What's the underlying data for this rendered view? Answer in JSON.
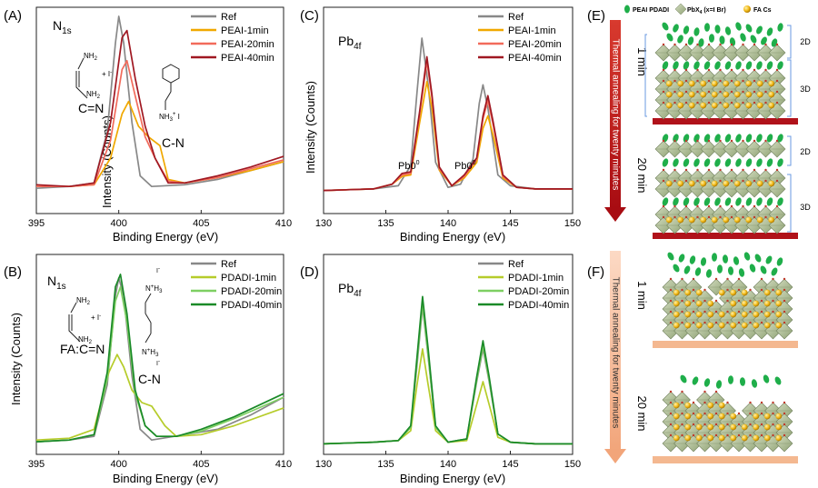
{
  "colors": {
    "ref": "#888888",
    "peai_1": "#f0a800",
    "peai_20": "#f26b5b",
    "peai_40": "#a01822",
    "pdadi_1": "#b6cc2a",
    "pdadi_20": "#7ecf62",
    "pdadi_40": "#1a8a28",
    "pea_pdadi": "#1fae4a",
    "pbx": "#a7b98a",
    "fa_cs": "#f2bb1a",
    "red_bar": "#b0121a",
    "light_bar": "#f4b890"
  },
  "chart_data": [
    {
      "panel": "(A)",
      "type": "line",
      "title": "N1s",
      "title_main": "N",
      "title_sub": "1s",
      "xlabel": "Binding Energy (eV)",
      "ylabel": "Intensity (Counts)",
      "xlim": [
        395,
        410
      ],
      "xticks": [
        395,
        400,
        405,
        410
      ],
      "legend": [
        "Ref",
        "PEAI-1min",
        "PEAI-20min",
        "PEAI-40min"
      ],
      "legend_position": "top-right",
      "annotations": [
        "C=N",
        "C-N"
      ],
      "series": [
        {
          "name": "Ref",
          "x": [
            395,
            397,
            398.5,
            399.3,
            399.8,
            400.0,
            400.3,
            400.8,
            401.3,
            402,
            404,
            406,
            408,
            410
          ],
          "y": [
            0.03,
            0.04,
            0.06,
            0.35,
            0.85,
            1.0,
            0.85,
            0.4,
            0.1,
            0.04,
            0.05,
            0.08,
            0.13,
            0.18
          ]
        },
        {
          "name": "PEAI-1min",
          "x": [
            395,
            397,
            398.5,
            399.5,
            400.2,
            400.6,
            401.2,
            401.8,
            402.5,
            403,
            404,
            406,
            408,
            410
          ],
          "y": [
            0.04,
            0.04,
            0.05,
            0.2,
            0.45,
            0.52,
            0.38,
            0.32,
            0.27,
            0.08,
            0.06,
            0.09,
            0.13,
            0.18
          ]
        },
        {
          "name": "PEAI-20min",
          "x": [
            395,
            397,
            398.5,
            399.5,
            400.2,
            400.5,
            401.0,
            401.6,
            402.2,
            403,
            404,
            406,
            408,
            410
          ],
          "y": [
            0.04,
            0.04,
            0.05,
            0.3,
            0.7,
            0.75,
            0.55,
            0.32,
            0.2,
            0.07,
            0.06,
            0.09,
            0.14,
            0.19
          ]
        },
        {
          "name": "PEAI-40min",
          "x": [
            395,
            397,
            398.5,
            399.5,
            400.2,
            400.5,
            401.0,
            401.6,
            402.2,
            403,
            404,
            406,
            408,
            410
          ],
          "y": [
            0.05,
            0.04,
            0.06,
            0.4,
            0.88,
            0.92,
            0.65,
            0.38,
            0.2,
            0.06,
            0.06,
            0.1,
            0.15,
            0.21
          ]
        }
      ]
    },
    {
      "panel": "(C)",
      "type": "line",
      "title": "Pb4f",
      "title_main": "Pb",
      "title_sub": "4f",
      "xlabel": "Binding Energy (eV)",
      "ylabel": "Intensity (Counts)",
      "xlim": [
        130,
        150
      ],
      "xticks": [
        130,
        135,
        140,
        145,
        150
      ],
      "legend": [
        "Ref",
        "PEAI-1min",
        "PEAI-20min",
        "PEAI-40min"
      ],
      "legend_position": "top-right",
      "annotations": [
        "Pb0",
        "Pb0"
      ],
      "series": [
        {
          "name": "Ref",
          "x": [
            130,
            134,
            136,
            137,
            137.5,
            137.9,
            138.4,
            139,
            140,
            141,
            142,
            142.5,
            142.8,
            143.2,
            144,
            145,
            147,
            150
          ],
          "y": [
            0.02,
            0.03,
            0.05,
            0.18,
            0.65,
            1.0,
            0.7,
            0.2,
            0.04,
            0.06,
            0.22,
            0.58,
            0.7,
            0.55,
            0.12,
            0.05,
            0.03,
            0.03
          ]
        },
        {
          "name": "PEAI-1min",
          "x": [
            130,
            134,
            135.5,
            136.3,
            137,
            137.7,
            138.3,
            138.7,
            139.3,
            140.3,
            141.3,
            142.3,
            142.8,
            143.2,
            143.6,
            144.4,
            145.5,
            147,
            150
          ],
          "y": [
            0.02,
            0.03,
            0.06,
            0.11,
            0.12,
            0.45,
            0.72,
            0.55,
            0.15,
            0.05,
            0.1,
            0.2,
            0.42,
            0.5,
            0.38,
            0.1,
            0.04,
            0.03,
            0.03
          ]
        },
        {
          "name": "PEAI-20min",
          "x": [
            130,
            134,
            135.5,
            136.3,
            137,
            137.7,
            138.3,
            138.7,
            139.3,
            140.3,
            141.3,
            142.3,
            142.8,
            143.2,
            143.6,
            144.4,
            145.5,
            147,
            150
          ],
          "y": [
            0.02,
            0.03,
            0.06,
            0.12,
            0.13,
            0.5,
            0.85,
            0.62,
            0.16,
            0.05,
            0.11,
            0.22,
            0.48,
            0.6,
            0.45,
            0.11,
            0.04,
            0.03,
            0.03
          ]
        },
        {
          "name": "PEAI-40min",
          "x": [
            130,
            134,
            135.5,
            136.3,
            137,
            137.7,
            138.3,
            138.7,
            139.3,
            140.3,
            141.3,
            142.3,
            142.8,
            143.2,
            143.6,
            144.4,
            145.5,
            147,
            150
          ],
          "y": [
            0.02,
            0.03,
            0.06,
            0.13,
            0.14,
            0.52,
            0.88,
            0.64,
            0.17,
            0.05,
            0.12,
            0.23,
            0.5,
            0.63,
            0.47,
            0.12,
            0.04,
            0.03,
            0.03
          ]
        }
      ]
    },
    {
      "panel": "(B)",
      "type": "line",
      "title": "N1s",
      "title_main": "N",
      "title_sub": "1s",
      "xlabel": "Binding Energy (eV)",
      "ylabel": "Intensity (Counts)",
      "xlim": [
        395,
        410
      ],
      "xticks": [
        395,
        400,
        405,
        410
      ],
      "legend": [
        "Ref",
        "PDADI-1min",
        "PDADI-20min",
        "PDADI-40min"
      ],
      "legend_position": "top-right",
      "annotations": [
        "FA:C=N",
        "C-N"
      ],
      "series": [
        {
          "name": "Ref",
          "x": [
            395,
            397,
            398.5,
            399.3,
            399.8,
            400.0,
            400.3,
            400.8,
            401.3,
            402,
            404,
            406,
            408,
            410
          ],
          "y": [
            0.03,
            0.04,
            0.06,
            0.35,
            0.85,
            0.95,
            0.85,
            0.4,
            0.1,
            0.04,
            0.07,
            0.1,
            0.18,
            0.28
          ]
        },
        {
          "name": "PDADI-1min",
          "x": [
            395,
            397,
            398.5,
            399.4,
            399.9,
            400.3,
            400.8,
            401.4,
            402.0,
            402.8,
            403.5,
            405,
            407,
            410
          ],
          "y": [
            0.04,
            0.05,
            0.1,
            0.42,
            0.52,
            0.45,
            0.32,
            0.25,
            0.23,
            0.12,
            0.06,
            0.07,
            0.12,
            0.22
          ]
        },
        {
          "name": "PDADI-20min",
          "x": [
            395,
            397,
            398.5,
            399.3,
            399.8,
            400.1,
            400.5,
            401.0,
            401.6,
            402.3,
            403.5,
            405,
            407,
            410
          ],
          "y": [
            0.03,
            0.04,
            0.07,
            0.38,
            0.82,
            0.9,
            0.7,
            0.3,
            0.12,
            0.06,
            0.06,
            0.09,
            0.16,
            0.28
          ]
        },
        {
          "name": "PDADI-40min",
          "x": [
            395,
            397,
            398.5,
            399.3,
            399.8,
            400.1,
            400.5,
            401.0,
            401.6,
            402.3,
            403.5,
            405,
            407,
            410
          ],
          "y": [
            0.03,
            0.04,
            0.07,
            0.42,
            0.9,
            0.97,
            0.75,
            0.32,
            0.12,
            0.06,
            0.06,
            0.1,
            0.17,
            0.3
          ]
        }
      ]
    },
    {
      "panel": "(D)",
      "type": "line",
      "title": "Pb4f",
      "title_main": "Pb",
      "title_sub": "4f",
      "xlabel": "Binding Energy (eV)",
      "ylabel": "",
      "xlim": [
        130,
        150
      ],
      "xticks": [
        130,
        135,
        140,
        145,
        150
      ],
      "legend": [
        "Ref",
        "PDADI-1min",
        "PDADI-20min",
        "PDADI-40min"
      ],
      "legend_position": "top-right",
      "annotations": [],
      "series": [
        {
          "name": "Ref",
          "x": [
            130,
            134,
            136,
            137,
            137.5,
            137.95,
            138.4,
            139,
            140,
            141.5,
            142.3,
            142.8,
            143.3,
            144,
            145,
            147,
            150
          ],
          "y": [
            0.02,
            0.03,
            0.04,
            0.12,
            0.5,
            0.86,
            0.55,
            0.12,
            0.03,
            0.05,
            0.4,
            0.6,
            0.4,
            0.08,
            0.03,
            0.02,
            0.02
          ]
        },
        {
          "name": "PDADI-1min",
          "x": [
            130,
            134,
            136,
            137,
            137.5,
            137.95,
            138.4,
            139,
            140,
            141.5,
            142.3,
            142.8,
            143.3,
            144,
            145,
            147,
            150
          ],
          "y": [
            0.02,
            0.03,
            0.04,
            0.1,
            0.38,
            0.6,
            0.38,
            0.1,
            0.03,
            0.04,
            0.26,
            0.4,
            0.26,
            0.06,
            0.03,
            0.02,
            0.02
          ]
        },
        {
          "name": "PDADI-20min",
          "x": [
            130,
            134,
            136,
            137,
            137.5,
            137.95,
            138.4,
            139,
            140,
            141.5,
            142.3,
            142.8,
            143.3,
            144,
            145,
            147,
            150
          ],
          "y": [
            0.02,
            0.03,
            0.04,
            0.12,
            0.52,
            0.88,
            0.56,
            0.12,
            0.03,
            0.05,
            0.41,
            0.62,
            0.41,
            0.08,
            0.03,
            0.02,
            0.02
          ]
        },
        {
          "name": "PDADI-40min",
          "x": [
            130,
            134,
            136,
            137,
            137.5,
            137.95,
            138.4,
            139,
            140,
            141.5,
            142.3,
            142.8,
            143.3,
            144,
            145,
            147,
            150
          ],
          "y": [
            0.02,
            0.03,
            0.04,
            0.13,
            0.55,
            0.92,
            0.6,
            0.13,
            0.03,
            0.05,
            0.43,
            0.65,
            0.43,
            0.08,
            0.03,
            0.02,
            0.02
          ]
        }
      ]
    }
  ],
  "chem": {
    "nh2": "NH",
    "nh2_sub": "2",
    "plus_i": "+ I",
    "minus": "-",
    "nh3i": "NH",
    "nh3i_sub": "3",
    "nh3i_sup": "+",
    "nh3i_tail": " I",
    "n_h3": "N",
    "n_h3_sup": "+",
    "n_h3_tail": "H",
    "n_h3_sub": "3",
    "i_minus": "I",
    "i_minus_sup": "-",
    "pb0": "Pb",
    "pb0_sup": "0"
  },
  "schematic": {
    "panel_e": "(E)",
    "panel_f": "(F)",
    "legend_pea": "PEAI PDADI",
    "legend_pbx_main": "PbX",
    "legend_pbx_sub": "4",
    "legend_pbx_tail": " (x=I Br)",
    "legend_fa": "FA Cs",
    "arrow_text": "Thermal annealing for twenty minutes",
    "time_1": "1 min",
    "time_20": "20 min",
    "label_2d": "2D",
    "label_3d": "3D"
  }
}
